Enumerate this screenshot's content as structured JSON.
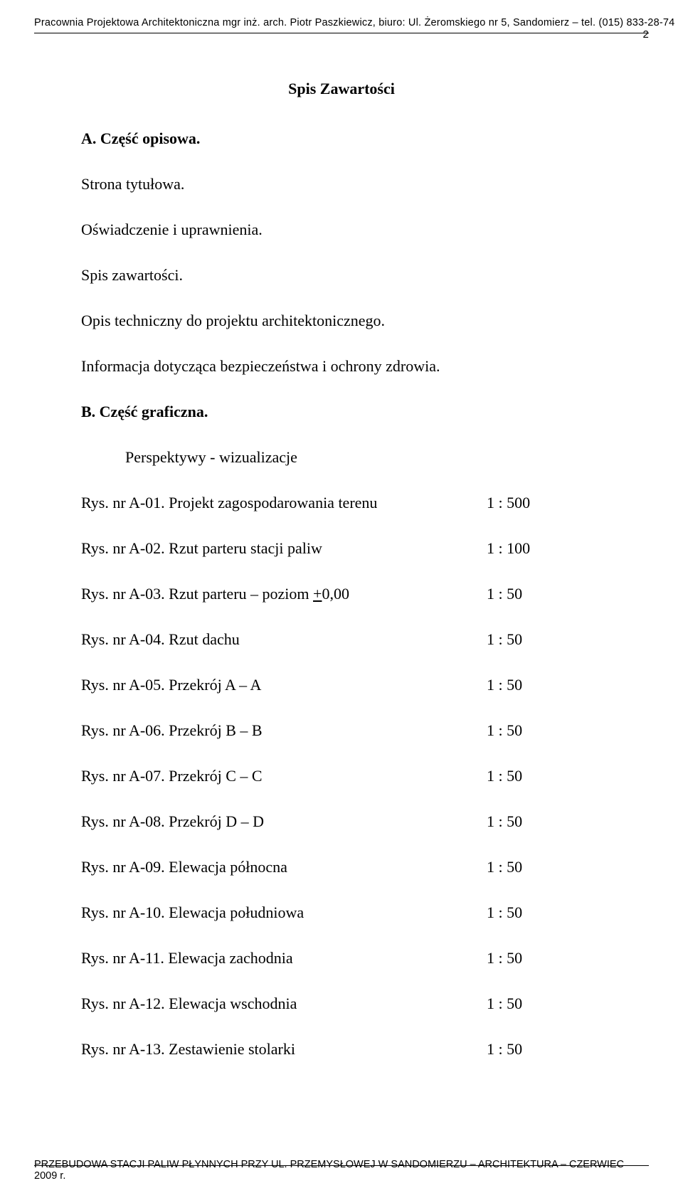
{
  "header": {
    "text": "Pracownia Projektowa Architektoniczna mgr inż. arch. Piotr Paszkiewicz, biuro: Ul. Żeromskiego nr 5, Sandomierz – tel. (015) 833-28-74",
    "page_number": "2"
  },
  "toc_title": "Spis Zawartości",
  "part_a": {
    "heading": "A. Część opisowa.",
    "items": [
      "Strona tytułowa.",
      "Oświadczenie i uprawnienia.",
      "Spis zawartości.",
      "Opis techniczny do projektu architektonicznego.",
      "Informacja dotycząca bezpieczeństwa i ochrony zdrowia."
    ]
  },
  "part_b": {
    "heading": "B. Część graficzna.",
    "sub": "Perspektywy - wizualizacje",
    "rows": [
      {
        "label": "Rys. nr   A-01. Projekt zagospodarowania terenu",
        "scale": "1 : 500"
      },
      {
        "label": "Rys. nr   A-02. Rzut parteru stacji paliw",
        "scale": "1 : 100"
      },
      {
        "label_prefix": "Rys. nr   A-03. Rzut parteru – poziom ",
        "level_sym": "+",
        "level_rest": "0,00",
        "scale": "1 : 50"
      },
      {
        "label": "Rys. nr   A-04. Rzut dachu",
        "scale": "1 : 50"
      },
      {
        "label": "Rys. nr   A-05. Przekrój A – A",
        "scale": "1 : 50"
      },
      {
        "label": "Rys. nr   A-06. Przekrój B – B",
        "scale": "1 : 50"
      },
      {
        "label": "Rys. nr   A-07. Przekrój C – C",
        "scale": "1 : 50"
      },
      {
        "label": "Rys. nr   A-08. Przekrój D – D",
        "scale": "1 : 50"
      },
      {
        "label": "Rys. nr   A-09. Elewacja północna",
        "scale": "1 : 50"
      },
      {
        "label": "Rys. nr   A-10. Elewacja południowa",
        "scale": "1 : 50"
      },
      {
        "label": "Rys. nr   A-11. Elewacja zachodnia",
        "scale": "1 : 50"
      },
      {
        "label": "Rys. nr   A-12. Elewacja wschodnia",
        "scale": "1 : 50"
      },
      {
        "label": "Rys. nr   A-13. Zestawienie stolarki",
        "scale": "1 : 50"
      }
    ]
  },
  "footer": {
    "text": "PRZEBUDOWA STACJI PALIW PŁYNNYCH PRZY UL. PRZEMYSŁOWEJ  W SANDOMIERZU – ARCHITEKTURA – CZERWIEC 2009 r."
  }
}
